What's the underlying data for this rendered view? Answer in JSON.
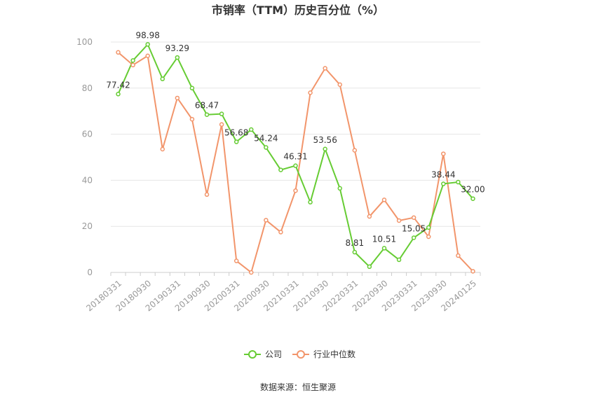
{
  "chart_data": {
    "type": "line",
    "title": "市销率（TTM）历史百分位（%）",
    "xlabel": "",
    "ylabel": "",
    "ylim": [
      0,
      100
    ],
    "yticks": [
      0,
      20,
      40,
      60,
      80,
      100
    ],
    "x": [
      "20180331",
      "20180630",
      "20180930",
      "20181231",
      "20190331",
      "20190630",
      "20190930",
      "20191231",
      "20200331",
      "20200630",
      "20200930",
      "20201231",
      "20210331",
      "20210630",
      "20210930",
      "20211231",
      "20220331",
      "20220630",
      "20220930",
      "20221231",
      "20230331",
      "20230630",
      "20230930",
      "20231231",
      "20240125"
    ],
    "x_tick_labels": [
      "20180331",
      "20180930",
      "20190331",
      "20190930",
      "20200331",
      "20200930",
      "20210331",
      "20210930",
      "20220331",
      "20220930",
      "20230331",
      "20230930",
      "20240125"
    ],
    "grid": "horizontal",
    "legend_position": "bottom-center",
    "series": [
      {
        "name": "公司",
        "color": "#66cc33",
        "values": [
          77.42,
          92.0,
          98.98,
          84.0,
          93.29,
          80.0,
          68.47,
          68.8,
          56.68,
          62.0,
          54.24,
          44.5,
          46.31,
          30.5,
          53.56,
          36.5,
          8.81,
          2.5,
          10.51,
          5.5,
          15.05,
          19.5,
          38.44,
          39.2,
          32.0
        ],
        "labels": {
          "0": "77.42",
          "2": "98.98",
          "4": "93.29",
          "6": "68.47",
          "8": "56.68",
          "10": "54.24",
          "12": "46.31",
          "14": "53.56",
          "16": "8.81",
          "18": "10.51",
          "20": "15.05",
          "22": "38.44",
          "24": "32.00"
        }
      },
      {
        "name": "行业中位数",
        "color": "#f2956b",
        "values": [
          95.5,
          90.0,
          94.0,
          53.5,
          75.7,
          66.5,
          33.8,
          64.2,
          5.0,
          0.0,
          22.7,
          17.5,
          35.5,
          78.0,
          88.6,
          81.5,
          53.0,
          24.3,
          31.5,
          22.5,
          23.8,
          15.5,
          51.5,
          7.3,
          0.5
        ]
      }
    ]
  },
  "source": "数据来源：恒生聚源"
}
